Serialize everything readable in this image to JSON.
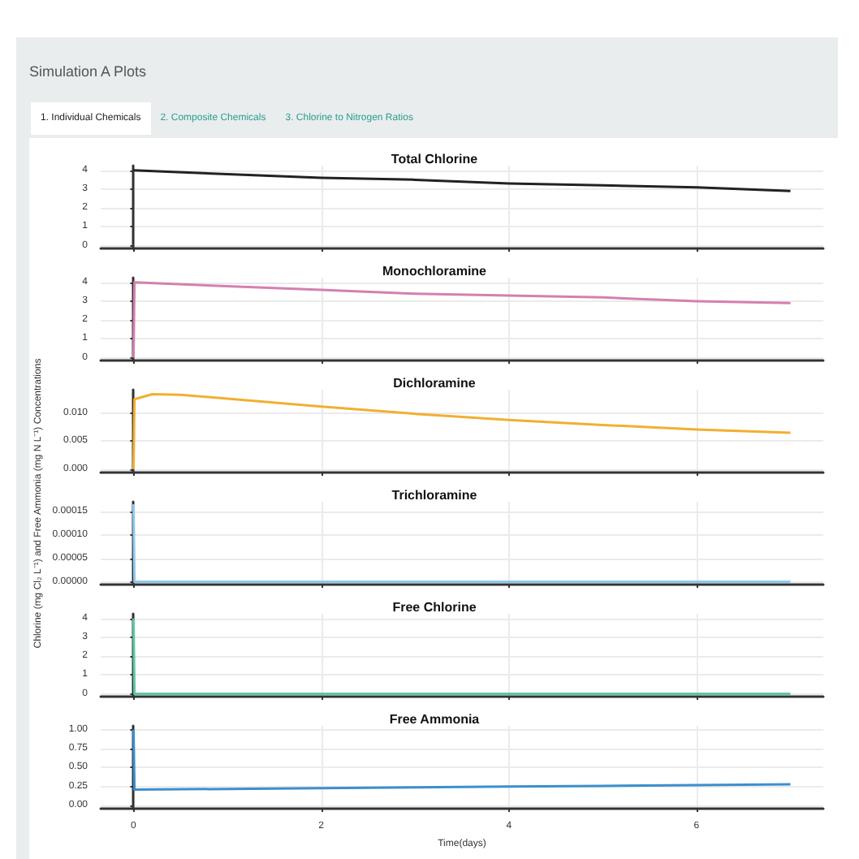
{
  "chart_data": [
    {
      "type": "line",
      "title": "Total Chlorine",
      "annotations": [
        "Simulation A Plots",
        "1. Individual Chemicals",
        "2. Composite Chemicals",
        "3. Chlorine to Nitrogen Ratios"
      ],
      "series": [
        {
          "color": "#222222",
          "x": [
            0,
            1,
            2,
            3,
            4,
            5,
            6,
            7
          ],
          "values": [
            4.0,
            3.8,
            3.6,
            3.5,
            3.3,
            3.2,
            3.1,
            2.9
          ]
        }
      ],
      "xlim": [
        -0.35,
        7.35
      ],
      "xticks": [
        0,
        2,
        4,
        6
      ],
      "ylim": [
        -0.15,
        4.25
      ],
      "yticks": [
        0,
        1,
        2,
        3,
        4
      ],
      "grid": true,
      "tick_labels": "y"
    },
    {
      "type": "line",
      "title": "Monochloramine",
      "series": [
        {
          "color": "#d67fb0",
          "x": [
            0,
            0.01,
            1,
            2,
            3,
            4,
            5,
            6,
            7
          ],
          "values": [
            0,
            4.0,
            3.8,
            3.6,
            3.4,
            3.3,
            3.2,
            3.0,
            2.9
          ]
        }
      ],
      "xlim": [
        -0.35,
        7.35
      ],
      "xticks": [
        0,
        2,
        4,
        6
      ],
      "ylim": [
        -0.15,
        4.25
      ],
      "yticks": [
        0,
        1,
        2,
        3,
        4
      ],
      "grid": true,
      "tick_labels": "y"
    },
    {
      "type": "line",
      "title": "Dichloramine",
      "ylabel": "Chlorine (mg Cl₂ L⁻¹) and Free Ammonia (mg N L⁻¹) Concentrations",
      "series": [
        {
          "color": "#f0b030",
          "x": [
            0,
            0.01,
            0.2,
            0.5,
            1,
            2,
            3,
            4,
            5,
            6,
            7
          ],
          "values": [
            0,
            0.0125,
            0.0134,
            0.0133,
            0.0126,
            0.0112,
            0.0099,
            0.0088,
            0.0079,
            0.0071,
            0.0065
          ]
        }
      ],
      "xlim": [
        -0.35,
        7.35
      ],
      "xticks": [
        0,
        2,
        4,
        6
      ],
      "ylim": [
        -0.0006,
        0.0142
      ],
      "yticks": [
        {
          "value": 0,
          "label": "0.000"
        },
        {
          "value": 0.005,
          "label": "0.005"
        },
        {
          "value": 0.01,
          "label": "0.010"
        }
      ],
      "grid": true,
      "tick_labels": "y"
    },
    {
      "type": "line",
      "title": "Trichloramine",
      "series": [
        {
          "color": "#8ec9ec",
          "x": [
            0,
            0.01,
            7
          ],
          "values": [
            0.000165,
            0,
            0
          ]
        }
      ],
      "xlim": [
        -0.35,
        7.35
      ],
      "xticks": [
        0,
        2,
        4,
        6
      ],
      "ylim": [
        -6e-06,
        0.00017
      ],
      "yticks": [
        {
          "value": 0,
          "label": "0.00000"
        },
        {
          "value": 5e-05,
          "label": "0.00005"
        },
        {
          "value": 0.0001,
          "label": "0.00010"
        },
        {
          "value": 0.00015,
          "label": "0.00015"
        }
      ],
      "grid": true,
      "tick_labels": "y"
    },
    {
      "type": "line",
      "title": "Free Chlorine",
      "series": [
        {
          "color": "#5cc9a0",
          "x": [
            0,
            0.01,
            7
          ],
          "values": [
            4.0,
            0,
            0
          ]
        }
      ],
      "xlim": [
        -0.35,
        7.35
      ],
      "xticks": [
        0,
        2,
        4,
        6
      ],
      "ylim": [
        -0.15,
        4.25
      ],
      "yticks": [
        0,
        1,
        2,
        3,
        4
      ],
      "grid": true,
      "tick_labels": "y"
    },
    {
      "type": "line",
      "title": "Free Ammonia",
      "xlabel": "Time(days)",
      "series": [
        {
          "color": "#3b8fce",
          "x": [
            0,
            0.01,
            1,
            2,
            3,
            4,
            5,
            6,
            7
          ],
          "values": [
            1.0,
            0.21,
            0.22,
            0.23,
            0.24,
            0.25,
            0.26,
            0.27,
            0.28
          ]
        }
      ],
      "xlim": [
        -0.35,
        7.35
      ],
      "xticks": [
        0,
        2,
        4,
        6
      ],
      "ylim": [
        -0.04,
        1.05
      ],
      "yticks": [
        {
          "value": 0,
          "label": "0.00"
        },
        {
          "value": 0.25,
          "label": "0.25"
        },
        {
          "value": 0.5,
          "label": "0.50"
        },
        {
          "value": 0.75,
          "label": "0.75"
        },
        {
          "value": 1,
          "label": "1.00"
        }
      ],
      "grid": true
    }
  ]
}
